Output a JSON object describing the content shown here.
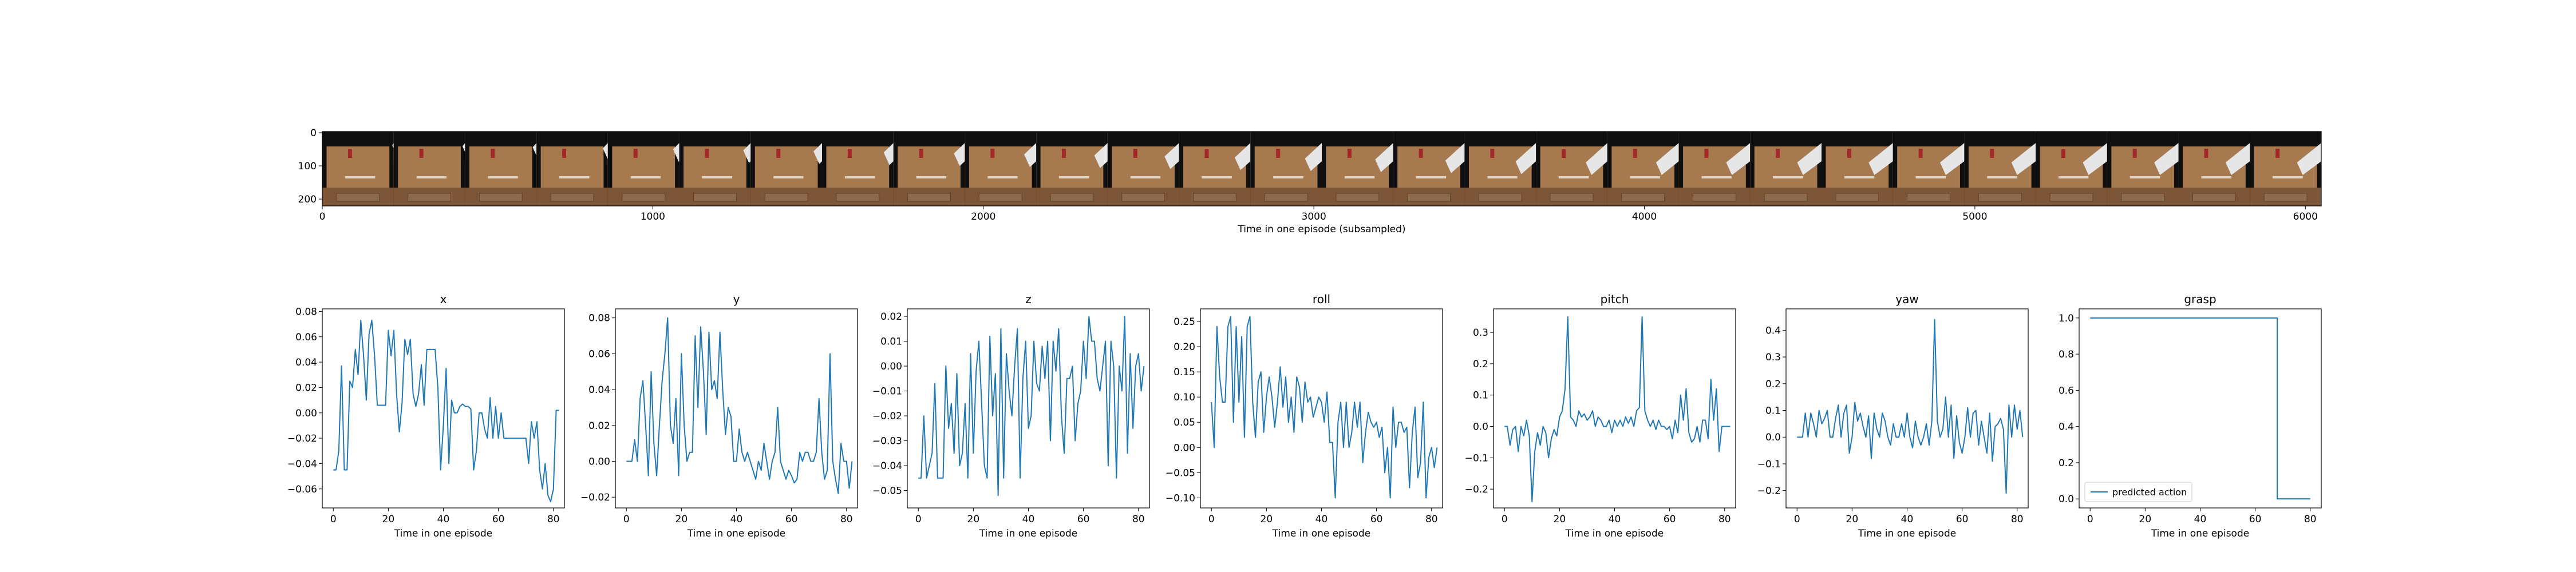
{
  "figure": {
    "strip": {
      "xlabel": "Time in one episode (subsampled)",
      "x_ticks": [
        "0",
        "1000",
        "2000",
        "3000",
        "4000",
        "5000",
        "6000"
      ],
      "y_ticks": [
        "0",
        "100",
        "200"
      ],
      "frame_count": 28,
      "colors": {
        "wall": "#0f0f0f",
        "table": "#a6794f",
        "table_front": "#7c5636",
        "robot": "#e6e6e6",
        "cup": "#a3282a",
        "plate": "#ddd6c8"
      }
    },
    "line_color": "#1f77b4",
    "legend_label": "predicted action"
  },
  "chart_data": [
    {
      "type": "line",
      "title": "x",
      "xlabel": "Time in one episode",
      "ylabel": "",
      "xlim": [
        -4,
        84
      ],
      "ylim": [
        -0.075,
        0.082
      ],
      "x_ticks": [
        0,
        20,
        40,
        60,
        80
      ],
      "y_ticks": [
        -0.06,
        -0.04,
        -0.02,
        0.0,
        0.02,
        0.04,
        0.06,
        0.08
      ],
      "y_tick_labels": [
        "−0.06",
        "−0.04",
        "−0.02",
        "0.00",
        "0.02",
        "0.04",
        "0.06",
        "0.08"
      ],
      "series": [
        {
          "values": [
            -0.045,
            -0.045,
            -0.03,
            0.037,
            -0.045,
            -0.045,
            0.025,
            0.02,
            0.05,
            0.03,
            0.073,
            0.045,
            0.01,
            0.062,
            0.073,
            0.045,
            0.006,
            0.006,
            0.006,
            0.006,
            0.065,
            0.045,
            0.065,
            0.015,
            -0.015,
            0.008,
            0.058,
            0.046,
            0.058,
            0.015,
            0.005,
            0.015,
            0.038,
            0.006,
            0.05,
            0.05,
            0.05,
            0.05,
            0.02,
            -0.045,
            -0.01,
            0.035,
            -0.04,
            0.01,
            0.0,
            0.0,
            0.005,
            0.007,
            0.005,
            0.005,
            0.003,
            -0.045,
            -0.03,
            0.0,
            0.0,
            -0.013,
            -0.02,
            0.012,
            -0.02,
            0.005,
            -0.02,
            0.0,
            -0.02,
            -0.02,
            -0.02,
            -0.02,
            -0.02,
            -0.02,
            -0.02,
            -0.02,
            -0.02,
            -0.04,
            -0.007,
            -0.02,
            -0.007,
            -0.045,
            -0.06,
            -0.04,
            -0.065,
            -0.07,
            -0.06,
            0.002,
            0.002
          ]
        }
      ]
    },
    {
      "type": "line",
      "title": "y",
      "xlabel": "Time in one episode",
      "ylabel": "",
      "xlim": [
        -4,
        84
      ],
      "ylim": [
        -0.026,
        0.085
      ],
      "x_ticks": [
        0,
        20,
        40,
        60,
        80
      ],
      "y_ticks": [
        -0.02,
        0.0,
        0.02,
        0.04,
        0.06,
        0.08
      ],
      "y_tick_labels": [
        "−0.02",
        "0.00",
        "0.02",
        "0.04",
        "0.06",
        "0.08"
      ],
      "series": [
        {
          "values": [
            0.0,
            0.0,
            0.0,
            0.012,
            0.0,
            0.035,
            0.045,
            0.02,
            -0.008,
            0.05,
            0.01,
            -0.008,
            0.02,
            0.045,
            0.06,
            0.08,
            0.02,
            0.01,
            0.035,
            -0.008,
            0.06,
            0.02,
            0.0,
            0.005,
            0.005,
            0.07,
            0.03,
            0.075,
            0.05,
            0.015,
            0.072,
            0.04,
            0.045,
            0.035,
            0.072,
            0.04,
            0.015,
            0.03,
            0.025,
            0.0,
            0.0,
            0.018,
            0.005,
            0.0,
            0.005,
            0.0,
            -0.005,
            -0.01,
            0.0,
            -0.005,
            0.01,
            0.0,
            -0.01,
            0.0,
            0.005,
            0.03,
            0.0,
            -0.005,
            -0.01,
            -0.005,
            -0.008,
            -0.012,
            -0.01,
            0.005,
            0.0,
            0.005,
            0.005,
            0.0,
            0.0,
            0.005,
            0.035,
            0.005,
            -0.01,
            -0.005,
            0.06,
            0.0,
            -0.01,
            -0.018,
            0.01,
            0.0,
            0.0,
            -0.015,
            0.0
          ]
        }
      ]
    },
    {
      "type": "line",
      "title": "z",
      "xlabel": "Time in one episode",
      "ylabel": "",
      "xlim": [
        -4,
        84
      ],
      "ylim": [
        -0.057,
        0.023
      ],
      "x_ticks": [
        0,
        20,
        40,
        60,
        80
      ],
      "y_ticks": [
        -0.05,
        -0.04,
        -0.03,
        -0.02,
        -0.01,
        0.0,
        0.01,
        0.02
      ],
      "y_tick_labels": [
        "−0.05",
        "−0.04",
        "−0.03",
        "−0.02",
        "−0.01",
        "0.00",
        "0.01",
        "0.02"
      ],
      "series": [
        {
          "values": [
            -0.045,
            -0.045,
            -0.02,
            -0.045,
            -0.04,
            -0.035,
            -0.007,
            -0.045,
            -0.045,
            -0.045,
            0.0,
            -0.025,
            -0.015,
            -0.035,
            -0.003,
            -0.04,
            -0.035,
            -0.015,
            -0.045,
            0.005,
            -0.035,
            -0.002,
            0.01,
            -0.015,
            -0.04,
            -0.045,
            0.012,
            -0.02,
            -0.003,
            -0.052,
            0.015,
            -0.045,
            0.005,
            -0.01,
            -0.02,
            0.0,
            0.015,
            -0.045,
            -0.005,
            0.01,
            -0.025,
            -0.02,
            0.01,
            -0.007,
            -0.01,
            0.008,
            -0.005,
            0.01,
            -0.03,
            0.01,
            -0.002,
            0.015,
            -0.02,
            -0.035,
            -0.005,
            -0.005,
            0.0,
            -0.03,
            -0.015,
            -0.01,
            0.01,
            -0.005,
            0.02,
            0.01,
            0.01,
            -0.005,
            -0.01,
            0.0,
            0.01,
            -0.04,
            0.01,
            0.0,
            -0.045,
            0.0,
            -0.01,
            0.02,
            -0.035,
            0.005,
            -0.025,
            0.0,
            0.005,
            -0.01,
            0.0
          ]
        }
      ]
    },
    {
      "type": "line",
      "title": "roll",
      "xlabel": "Time in one episode",
      "ylabel": "",
      "xlim": [
        -4,
        84
      ],
      "ylim": [
        -0.12,
        0.275
      ],
      "x_ticks": [
        0,
        20,
        40,
        60,
        80
      ],
      "y_ticks": [
        -0.1,
        -0.05,
        0.0,
        0.05,
        0.1,
        0.15,
        0.2,
        0.25
      ],
      "y_tick_labels": [
        "−0.10",
        "−0.05",
        "0.00",
        "0.05",
        "0.10",
        "0.15",
        "0.20",
        "0.25"
      ],
      "series": [
        {
          "values": [
            0.09,
            0.0,
            0.24,
            0.14,
            0.09,
            0.09,
            0.24,
            0.26,
            0.05,
            0.24,
            0.09,
            0.22,
            0.02,
            0.24,
            0.26,
            0.09,
            0.02,
            0.13,
            0.15,
            0.03,
            0.1,
            0.14,
            0.1,
            0.04,
            0.09,
            0.16,
            0.08,
            0.14,
            0.05,
            0.1,
            0.03,
            0.14,
            0.12,
            0.05,
            0.13,
            0.09,
            0.1,
            0.06,
            0.08,
            0.1,
            0.09,
            0.05,
            0.11,
            0.01,
            0.01,
            -0.1,
            0.05,
            0.09,
            0.0,
            0.09,
            0.0,
            0.03,
            0.09,
            0.04,
            0.09,
            -0.03,
            0.03,
            0.07,
            0.05,
            0.04,
            0.05,
            0.02,
            0.04,
            -0.05,
            0.0,
            -0.1,
            0.08,
            0.0,
            0.05,
            0.05,
            0.03,
            0.04,
            -0.08,
            0.03,
            0.08,
            -0.06,
            -0.03,
            0.09,
            -0.1,
            -0.02,
            0.0,
            -0.04,
            0.0
          ]
        }
      ]
    },
    {
      "type": "line",
      "title": "pitch",
      "xlabel": "Time in one episode",
      "ylabel": "",
      "xlim": [
        -4,
        84
      ],
      "ylim": [
        -0.26,
        0.375
      ],
      "x_ticks": [
        0,
        20,
        40,
        60,
        80
      ],
      "y_ticks": [
        -0.2,
        -0.1,
        0.0,
        0.1,
        0.2,
        0.3
      ],
      "y_tick_labels": [
        "−0.2",
        "−0.1",
        "0.0",
        "0.1",
        "0.2",
        "0.3"
      ],
      "series": [
        {
          "values": [
            0.0,
            0.0,
            -0.06,
            -0.01,
            0.0,
            -0.08,
            0.0,
            -0.03,
            0.02,
            -0.03,
            -0.24,
            -0.08,
            -0.02,
            -0.06,
            0.0,
            -0.02,
            -0.1,
            -0.04,
            -0.01,
            -0.03,
            0.03,
            0.05,
            0.12,
            0.35,
            0.03,
            0.02,
            0.0,
            0.05,
            0.03,
            0.04,
            0.02,
            0.03,
            0.05,
            0.0,
            0.03,
            0.02,
            0.0,
            0.0,
            0.02,
            -0.02,
            0.02,
            0.0,
            0.02,
            0.0,
            0.03,
            0.01,
            0.03,
            0.0,
            0.05,
            0.06,
            0.35,
            0.05,
            0.02,
            0.0,
            0.02,
            -0.01,
            0.02,
            0.0,
            0.0,
            -0.01,
            0.0,
            -0.04,
            0.02,
            -0.02,
            0.1,
            0.02,
            0.12,
            -0.02,
            -0.05,
            -0.04,
            0.0,
            -0.05,
            0.02,
            0.02,
            -0.04,
            0.15,
            0.02,
            0.12,
            -0.08,
            0.0,
            0.0,
            0.0,
            0.0
          ]
        }
      ]
    },
    {
      "type": "line",
      "title": "yaw",
      "xlabel": "Time in one episode",
      "ylabel": "",
      "xlim": [
        -4,
        84
      ],
      "ylim": [
        -0.265,
        0.48
      ],
      "x_ticks": [
        0,
        20,
        40,
        60,
        80
      ],
      "y_ticks": [
        -0.2,
        -0.1,
        0.0,
        0.1,
        0.2,
        0.3,
        0.4
      ],
      "y_tick_labels": [
        "−0.2",
        "−0.1",
        "0.0",
        "0.1",
        "0.2",
        "0.3",
        "0.4"
      ],
      "series": [
        {
          "values": [
            0.0,
            0.0,
            0.0,
            0.09,
            0.0,
            0.09,
            0.05,
            0.0,
            0.1,
            0.05,
            0.07,
            0.1,
            0.0,
            0.0,
            0.07,
            0.12,
            0.0,
            0.09,
            0.12,
            -0.06,
            0.0,
            0.13,
            0.06,
            0.09,
            0.04,
            0.0,
            0.08,
            -0.08,
            0.09,
            0.03,
            0.0,
            0.09,
            0.06,
            0.0,
            -0.03,
            0.05,
            0.0,
            0.0,
            0.05,
            0.0,
            0.09,
            0.0,
            -0.04,
            0.06,
            0.0,
            -0.03,
            0.0,
            0.05,
            -0.03,
            0.06,
            0.44,
            0.06,
            0.0,
            0.03,
            0.15,
            0.0,
            0.12,
            -0.08,
            0.08,
            -0.02,
            -0.06,
            0.0,
            0.11,
            0.0,
            0.09,
            0.1,
            -0.03,
            0.06,
            0.0,
            -0.06,
            0.09,
            -0.09,
            0.04,
            0.05,
            0.07,
            0.03,
            -0.21,
            0.12,
            0.0,
            0.12,
            0.03,
            0.1,
            0.0
          ]
        }
      ]
    },
    {
      "type": "line",
      "title": "grasp",
      "xlabel": "Time in one episode",
      "ylabel": "",
      "xlim": [
        -4,
        84
      ],
      "ylim": [
        -0.05,
        1.05
      ],
      "x_ticks": [
        0,
        20,
        40,
        60,
        80
      ],
      "y_ticks": [
        0.0,
        0.2,
        0.4,
        0.6,
        0.8,
        1.0
      ],
      "y_tick_labels": [
        "0.0",
        "0.2",
        "0.4",
        "0.6",
        "0.8",
        "1.0"
      ],
      "legend": {
        "label": "predicted action",
        "loc": "lower left"
      },
      "series": [
        {
          "name": "predicted action",
          "x": [
            0,
            68,
            68,
            80
          ],
          "values": [
            1.0,
            1.0,
            0.0,
            0.0
          ]
        }
      ]
    }
  ]
}
